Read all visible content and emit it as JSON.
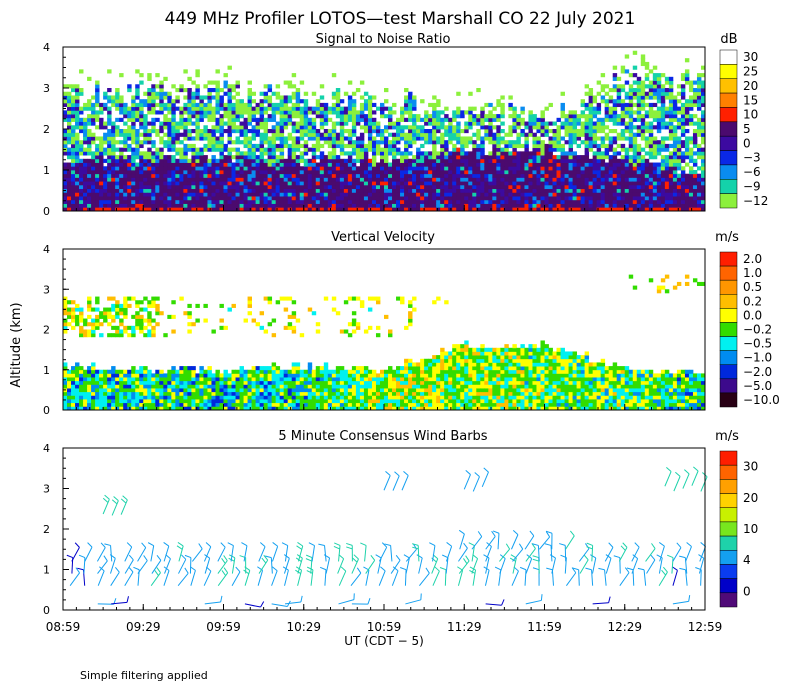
{
  "title": "449 MHz Profiler LOTOS—test Marshall CO 22 July 2021",
  "footer_note": "Simple filtering applied",
  "y_axis_label": "Altitude (km)",
  "x_axis_label": "UT  (CDT − 5)",
  "x_ticks": [
    "08:59",
    "09:29",
    "09:59",
    "10:29",
    "10:59",
    "11:29",
    "11:59",
    "12:29",
    "12:59"
  ],
  "y_ticks": [
    "0",
    "1",
    "2",
    "3",
    "4"
  ],
  "chart_data": [
    {
      "type": "heatmap",
      "title": "Signal to Noise Ratio",
      "xlabel": "UT (CDT - 5)",
      "ylabel": "Altitude (km)",
      "ylim": [
        0,
        4
      ],
      "time_range": [
        "08:59",
        "12:59"
      ],
      "colorbar_unit": "dB",
      "colorbar_labels": [
        "30",
        "25",
        "20",
        "15",
        "10",
        "5",
        "0",
        "−3",
        "−6",
        "−9",
        "−12"
      ],
      "colorbar_colors": [
        "#ffffff",
        "#ffff00",
        "#ffc000",
        "#ff8000",
        "#ff2000",
        "#4b0a6e",
        "#3c0aa0",
        "#0a28e6",
        "#0a8cf0",
        "#14d2aa",
        "#8cf03c"
      ],
      "series": [
        {
          "name": "top_of_echo_km",
          "times": [
            "08:59",
            "09:29",
            "09:59",
            "10:29",
            "10:59",
            "11:29",
            "11:59",
            "12:29",
            "12:59"
          ],
          "values": [
            2.8,
            3.0,
            2.9,
            2.8,
            2.7,
            2.5,
            2.3,
            3.3,
            3.2
          ]
        },
        {
          "name": "strong_echo_top_km",
          "times": [
            "08:59",
            "09:29",
            "09:59",
            "10:29",
            "10:59",
            "11:29",
            "11:59",
            "12:29",
            "12:59"
          ],
          "values": [
            1.2,
            1.3,
            1.3,
            1.2,
            1.2,
            1.4,
            1.5,
            1.2,
            0.9
          ]
        }
      ]
    },
    {
      "type": "heatmap",
      "title": "Vertical Velocity",
      "xlabel": "UT (CDT - 5)",
      "ylabel": "Altitude (km)",
      "ylim": [
        0,
        4
      ],
      "time_range": [
        "08:59",
        "12:59"
      ],
      "colorbar_unit": "m/s",
      "colorbar_labels": [
        "2.0",
        "1.0",
        "0.5",
        "0.2",
        "0.0",
        "−0.2",
        "−0.5",
        "−1.0",
        "−2.0",
        "−5.0",
        "−10.0"
      ],
      "colorbar_colors": [
        "#ff1e00",
        "#ff6400",
        "#ff9600",
        "#ffbe00",
        "#ffff00",
        "#32dc00",
        "#00f0f0",
        "#008cf0",
        "#0028dc",
        "#3c0a8c",
        "#280014"
      ],
      "series": [
        {
          "name": "lower_layer_top_km",
          "times": [
            "08:59",
            "09:29",
            "09:59",
            "10:29",
            "10:59",
            "11:29",
            "11:59",
            "12:29",
            "12:59"
          ],
          "values": [
            1.1,
            1.0,
            1.0,
            1.1,
            1.0,
            1.6,
            1.6,
            1.1,
            0.9
          ]
        },
        {
          "name": "dominant_velocity_m_s",
          "times": [
            "08:59",
            "09:29",
            "09:59",
            "10:29",
            "10:59",
            "11:29",
            "11:59",
            "12:29",
            "12:59"
          ],
          "values": [
            -0.2,
            -0.2,
            -0.2,
            -0.2,
            0.1,
            0.1,
            0.0,
            0.0,
            -0.2
          ]
        }
      ]
    },
    {
      "type": "scatter",
      "title": "5 Minute Consensus Wind Barbs",
      "xlabel": "UT (CDT - 5)",
      "ylabel": "Altitude (km)",
      "ylim": [
        0,
        4
      ],
      "time_range": [
        "08:59",
        "12:59"
      ],
      "colorbar_unit": "m/s",
      "colorbar_labels": [
        "30",
        "20",
        "10",
        "4",
        "0"
      ],
      "colorbar_colors": [
        "#ff1e00",
        "#ff6400",
        "#ffa000",
        "#ffd200",
        "#c8f000",
        "#78e61e",
        "#1ed2aa",
        "#14a0f0",
        "#0a3cf0",
        "#0000c8",
        "#500a78"
      ],
      "series": [
        {
          "name": "typical_speed_m_s_near_1km",
          "times": [
            "08:59",
            "09:29",
            "09:59",
            "10:29",
            "10:59",
            "11:29",
            "11:59",
            "12:29",
            "12:59"
          ],
          "values": [
            5,
            6,
            6,
            7,
            7,
            6,
            6,
            6,
            5
          ]
        },
        {
          "name": "typical_speed_m_s_above_2km",
          "times": [
            "09:14",
            "10:59",
            "11:29",
            "12:44"
          ],
          "values": [
            9,
            6,
            6,
            7
          ]
        }
      ]
    }
  ]
}
